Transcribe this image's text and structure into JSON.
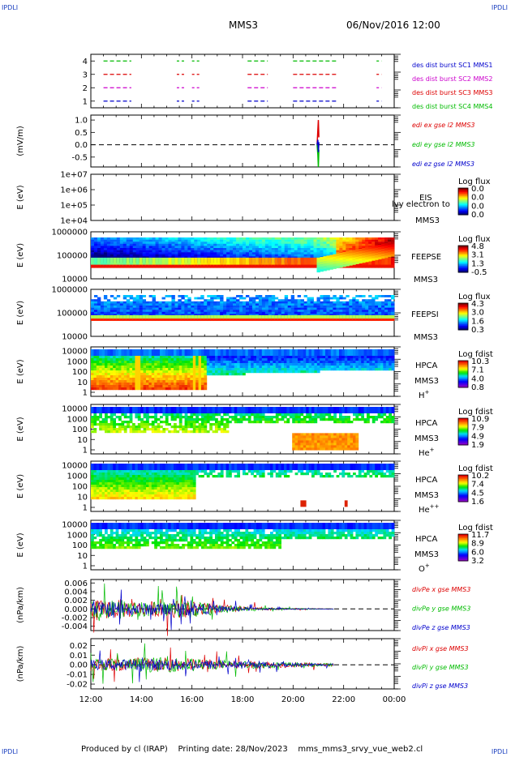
{
  "corners": {
    "tl": "IPDLI",
    "tr": "IPDLI",
    "bl": "IPDLI",
    "br": "IPDLI"
  },
  "header": {
    "spacecraft": "MMS3",
    "datetime": "06/Nov/2016 12:00"
  },
  "footer": {
    "produced": "Produced by cl (IRAP)",
    "printing": "Printing date: 28/Nov/2023",
    "file": "mms_mms3_srvy_vue_web2.cl"
  },
  "time_axis": {
    "labels": [
      "12:00",
      "14:00",
      "16:00",
      "18:00",
      "20:00",
      "22:00",
      "00:00"
    ]
  },
  "colors": {
    "red": "#dd0000",
    "green": "#00bb00",
    "blue": "#0000cc",
    "magenta": "#cc00cc",
    "black": "#000000"
  },
  "chart_data": [
    {
      "type": "scatter",
      "id": "burst",
      "yticks": [
        "1",
        "2",
        "3",
        "4"
      ],
      "ylim": [
        0.5,
        4.5
      ],
      "legend": [
        "des dist burst SC1 MMS1",
        "des dist burst SC2 MMS2",
        "des dist burst SC3 MMS3",
        "des dist burst SC4 MMS4"
      ],
      "series": [
        {
          "level": 4,
          "color": "#00bb00",
          "segments": [
            [
              0.25,
              0.8
            ],
            [
              1.7,
              1.85
            ],
            [
              2.0,
              2.15
            ],
            [
              3.1,
              3.5
            ],
            [
              4.0,
              4.85
            ],
            [
              5.65,
              5.75
            ]
          ]
        },
        {
          "level": 3,
          "color": "#dd0000",
          "segments": [
            [
              0.25,
              0.8
            ],
            [
              1.7,
              1.85
            ],
            [
              2.0,
              2.15
            ],
            [
              3.1,
              3.5
            ],
            [
              4.0,
              4.85
            ],
            [
              5.65,
              5.75
            ]
          ]
        },
        {
          "level": 2,
          "color": "#cc00cc",
          "segments": [
            [
              0.25,
              0.8
            ],
            [
              1.7,
              1.85
            ],
            [
              2.0,
              2.15
            ],
            [
              3.1,
              3.5
            ],
            [
              4.0,
              4.85
            ],
            [
              5.65,
              5.75
            ]
          ]
        },
        {
          "level": 1,
          "color": "#0000cc",
          "segments": [
            [
              0.25,
              0.8
            ],
            [
              1.7,
              1.85
            ],
            [
              2.0,
              2.15
            ],
            [
              3.1,
              3.5
            ],
            [
              4.0,
              4.85
            ],
            [
              5.65,
              5.75
            ]
          ]
        }
      ]
    },
    {
      "type": "line",
      "id": "edi",
      "ylabel": "(mV/m)",
      "yticks": [
        "1.0",
        "0.5",
        "0.0",
        "-0.5"
      ],
      "ylim": [
        -0.9,
        1.2
      ],
      "legend": [
        "edi ex gse l2 MMS3",
        "edi ey gse l2 MMS3",
        "edi ez gse l2 MMS3"
      ],
      "series": [
        {
          "name": "edi ex gse l2 MMS3",
          "color": "#dd0000",
          "x": [
            20.95,
            20.98,
            21.0,
            21.02
          ],
          "y": [
            0.0,
            0.6,
            1.0,
            0.3
          ]
        },
        {
          "name": "edi ey gse l2 MMS3",
          "color": "#00bb00",
          "x": [
            20.95,
            20.98,
            21.0,
            21.02
          ],
          "y": [
            0.0,
            -0.4,
            -0.9,
            -0.2
          ]
        },
        {
          "name": "edi ez gse l2 MMS3",
          "color": "#0000cc",
          "x": [
            20.95,
            20.98,
            21.0,
            21.02
          ],
          "y": [
            0.0,
            0.2,
            -0.3,
            0.1
          ]
        }
      ]
    },
    {
      "type": "heatmap",
      "id": "eis",
      "ylabel": "E (eV)",
      "yticks": [
        "1e+07",
        "1e+06",
        "1e+05",
        "1e+04"
      ],
      "label_lines": [
        "EIS",
        "MMS3"
      ],
      "overlap_text": "lvy electron to",
      "cb_title": "Log flux",
      "cb_ticks": [
        "0.0",
        "0.0",
        "0.0",
        "0.0"
      ]
    },
    {
      "type": "heatmap",
      "id": "feepse",
      "ylabel": "E (eV)",
      "yticks": [
        "1000000",
        "100000",
        "10000"
      ],
      "label_lines": [
        "FEEPSE",
        "MMS3"
      ],
      "cb_title": "Log flux",
      "cb_ticks": [
        "4.8",
        "3.1",
        "1.3",
        "-0.5"
      ]
    },
    {
      "type": "heatmap",
      "id": "feepsi",
      "ylabel": "E (eV)",
      "yticks": [
        "1000000",
        "100000",
        "10000"
      ],
      "label_lines": [
        "FEEPSI",
        "MMS3"
      ],
      "cb_title": "Log flux",
      "cb_ticks": [
        "4.3",
        "3.0",
        "1.6",
        "0.3"
      ]
    },
    {
      "type": "heatmap",
      "id": "hpca_h",
      "ylabel": "E (eV)",
      "yticks": [
        "10000",
        "1000",
        "100",
        "10",
        "1"
      ],
      "label_lines": [
        "HPCA",
        "MMS3"
      ],
      "species": "H",
      "species_sup": "+",
      "cb_title": "Log fdist",
      "cb_ticks": [
        "10.3",
        "7.1",
        "4.0",
        "0.8"
      ]
    },
    {
      "type": "heatmap",
      "id": "hpca_he1",
      "ylabel": "E (eV)",
      "yticks": [
        "10000",
        "1000",
        "100",
        "10",
        "1"
      ],
      "label_lines": [
        "HPCA",
        "MMS3"
      ],
      "species": "He",
      "species_sup": "+",
      "cb_title": "Log fdist",
      "cb_ticks": [
        "10.9",
        "7.9",
        "4.9",
        "1.9"
      ]
    },
    {
      "type": "heatmap",
      "id": "hpca_he2",
      "ylabel": "E (eV)",
      "yticks": [
        "10000",
        "1000",
        "100",
        "10",
        "1"
      ],
      "label_lines": [
        "HPCA",
        "MMS3"
      ],
      "species": "He",
      "species_sup": "++",
      "cb_title": "Log fdist",
      "cb_ticks": [
        "10.2",
        "7.4",
        "4.5",
        "1.6"
      ]
    },
    {
      "type": "heatmap",
      "id": "hpca_o",
      "ylabel": "E (eV)",
      "yticks": [
        "10000",
        "1000",
        "100",
        "10",
        "1"
      ],
      "label_lines": [
        "HPCA",
        "MMS3"
      ],
      "species": "O",
      "species_sup": "+",
      "cb_title": "Log fdist",
      "cb_ticks": [
        "11.7",
        "8.9",
        "6.0",
        "3.2"
      ]
    },
    {
      "type": "line",
      "id": "divpe",
      "ylabel": "(nPa/km)",
      "yticks": [
        "0.006",
        "0.004",
        "0.002",
        "0.000",
        "-0.002",
        "-0.004"
      ],
      "ylim": [
        -0.005,
        0.0068
      ],
      "legend": [
        "divPe x gse MMS3",
        "divPe y gse MMS3",
        "divPe z gse MMS3"
      ],
      "amp_envelope": [
        0.004,
        0.0045,
        0.004,
        0.0035,
        0.0035,
        0.004,
        0.004,
        0.003,
        0.002,
        0.0015,
        0.001,
        0.0006,
        0.0004,
        0.0003,
        0.0002,
        0.0001,
        5e-05
      ],
      "xmax": 21.6
    },
    {
      "type": "line",
      "id": "divpi",
      "ylabel": "(nPa/km)",
      "yticks": [
        "0.02",
        "0.01",
        "0.00",
        "-0.01",
        "-0.02"
      ],
      "ylim": [
        -0.025,
        0.027
      ],
      "legend": [
        "divPi x gse MMS3",
        "divPi y gse MMS3",
        "divPi z gse MMS3"
      ],
      "amp_envelope": [
        0.013,
        0.014,
        0.014,
        0.015,
        0.015,
        0.015,
        0.014,
        0.012,
        0.01,
        0.009,
        0.008,
        0.007,
        0.006,
        0.005,
        0.004,
        0.003,
        0.003
      ],
      "xmax": 21.6
    }
  ]
}
